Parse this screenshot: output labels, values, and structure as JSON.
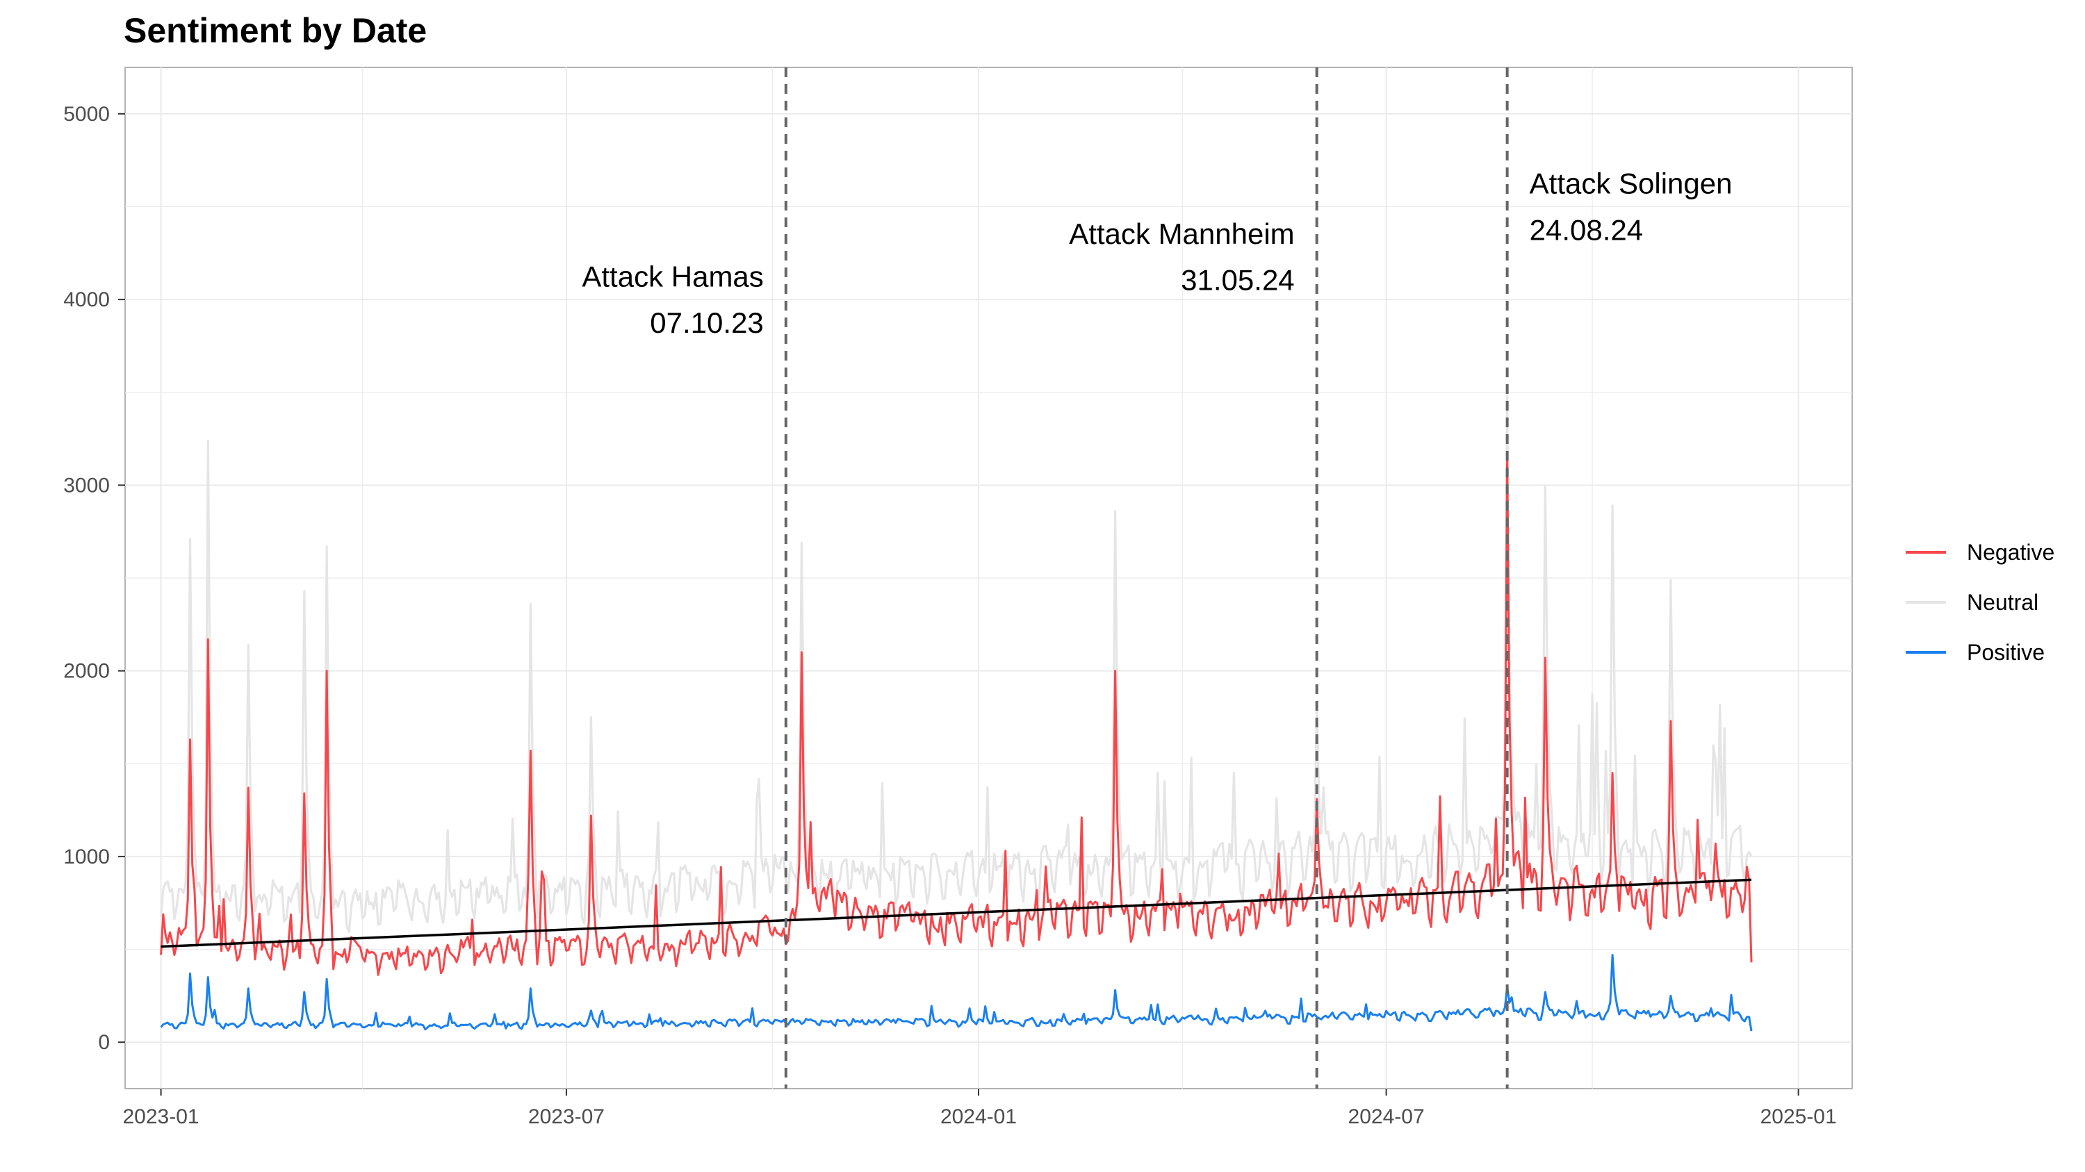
{
  "chart_data": {
    "type": "line",
    "title": "Sentiment by Date",
    "xlabel": "",
    "ylabel": "",
    "x_range": [
      "2022-12-16",
      "2025-01-25"
    ],
    "ylim": [
      -250,
      5250
    ],
    "y_ticks": [
      0,
      1000,
      2000,
      3000,
      4000,
      5000
    ],
    "x_ticks": [
      {
        "date": "2023-01-01",
        "label": "2023-01"
      },
      {
        "date": "2023-07-01",
        "label": "2023-07"
      },
      {
        "date": "2024-01-01",
        "label": "2024-01"
      },
      {
        "date": "2024-07-01",
        "label": "2024-07"
      },
      {
        "date": "2025-01-01",
        "label": "2025-01"
      }
    ],
    "grid": true,
    "legend_position": "right",
    "series": [
      {
        "name": "Neutral",
        "color": "#e5e5e5",
        "baseline": [
          {
            "date": "2023-01-01",
            "value": 800
          },
          {
            "date": "2023-04-01",
            "value": 740
          },
          {
            "date": "2023-06-01",
            "value": 790
          },
          {
            "date": "2023-08-01",
            "value": 820
          },
          {
            "date": "2023-10-07",
            "value": 900
          },
          {
            "date": "2023-12-01",
            "value": 890
          },
          {
            "date": "2024-02-01",
            "value": 930
          },
          {
            "date": "2024-04-01",
            "value": 920
          },
          {
            "date": "2024-05-31",
            "value": 1000
          },
          {
            "date": "2024-07-15",
            "value": 1000
          },
          {
            "date": "2024-08-24",
            "value": 1150
          },
          {
            "date": "2024-10-15",
            "value": 1000
          },
          {
            "date": "2024-12-10",
            "value": 1050
          }
        ],
        "spikes": [
          {
            "date": "2023-01-14",
            "value": 2710
          },
          {
            "date": "2023-01-22",
            "value": 3240
          },
          {
            "date": "2023-02-09",
            "value": 2140
          },
          {
            "date": "2023-03-06",
            "value": 2430
          },
          {
            "date": "2023-03-16",
            "value": 2670
          },
          {
            "date": "2023-06-15",
            "value": 2360
          },
          {
            "date": "2023-07-12",
            "value": 1750
          },
          {
            "date": "2023-10-14",
            "value": 2690
          },
          {
            "date": "2024-03-02",
            "value": 2860
          },
          {
            "date": "2024-05-31",
            "value": 1820
          },
          {
            "date": "2024-08-24",
            "value": 3480
          },
          {
            "date": "2024-09-10",
            "value": 2990
          },
          {
            "date": "2024-10-10",
            "value": 2890
          },
          {
            "date": "2024-11-05",
            "value": 2490
          },
          {
            "date": "2024-11-25",
            "value": 1520
          }
        ],
        "end_date": "2024-12-11",
        "end_value": 1000
      },
      {
        "name": "Negative",
        "color": "#f8464a",
        "baseline": [
          {
            "date": "2023-01-01",
            "value": 560
          },
          {
            "date": "2023-02-15",
            "value": 520
          },
          {
            "date": "2023-04-15",
            "value": 470
          },
          {
            "date": "2023-06-01",
            "value": 500
          },
          {
            "date": "2023-08-15",
            "value": 510
          },
          {
            "date": "2023-10-07",
            "value": 620
          },
          {
            "date": "2023-10-20",
            "value": 780
          },
          {
            "date": "2023-12-15",
            "value": 620
          },
          {
            "date": "2024-02-15",
            "value": 680
          },
          {
            "date": "2024-04-15",
            "value": 690
          },
          {
            "date": "2024-05-31",
            "value": 760
          },
          {
            "date": "2024-07-15",
            "value": 760
          },
          {
            "date": "2024-08-24",
            "value": 900
          },
          {
            "date": "2024-10-15",
            "value": 780
          },
          {
            "date": "2024-12-10",
            "value": 820
          }
        ],
        "spikes": [
          {
            "date": "2023-01-14",
            "value": 1630
          },
          {
            "date": "2023-01-22",
            "value": 2170
          },
          {
            "date": "2023-02-09",
            "value": 1370
          },
          {
            "date": "2023-03-06",
            "value": 1340
          },
          {
            "date": "2023-03-16",
            "value": 2000
          },
          {
            "date": "2023-06-15",
            "value": 1570
          },
          {
            "date": "2023-07-12",
            "value": 1220
          },
          {
            "date": "2023-10-14",
            "value": 2100
          },
          {
            "date": "2024-03-02",
            "value": 2000
          },
          {
            "date": "2024-05-31",
            "value": 1310
          },
          {
            "date": "2024-08-24",
            "value": 3160
          },
          {
            "date": "2024-09-10",
            "value": 2070
          },
          {
            "date": "2024-10-10",
            "value": 1450
          },
          {
            "date": "2024-11-05",
            "value": 1730
          },
          {
            "date": "2024-11-25",
            "value": 1070
          }
        ],
        "end_date": "2024-12-11",
        "end_value": 430
      },
      {
        "name": "Positive",
        "color": "#1a80f0",
        "baseline": [
          {
            "date": "2023-01-01",
            "value": 95
          },
          {
            "date": "2023-06-01",
            "value": 90
          },
          {
            "date": "2023-10-07",
            "value": 110
          },
          {
            "date": "2024-02-01",
            "value": 110
          },
          {
            "date": "2024-05-31",
            "value": 140
          },
          {
            "date": "2024-08-24",
            "value": 160
          },
          {
            "date": "2024-12-10",
            "value": 140
          }
        ],
        "spikes": [
          {
            "date": "2023-01-14",
            "value": 370
          },
          {
            "date": "2023-01-22",
            "value": 350
          },
          {
            "date": "2023-02-09",
            "value": 290
          },
          {
            "date": "2023-03-06",
            "value": 270
          },
          {
            "date": "2023-03-16",
            "value": 340
          },
          {
            "date": "2023-06-15",
            "value": 290
          },
          {
            "date": "2023-07-12",
            "value": 170
          },
          {
            "date": "2024-03-02",
            "value": 280
          },
          {
            "date": "2024-08-24",
            "value": 300
          },
          {
            "date": "2024-09-10",
            "value": 270
          },
          {
            "date": "2024-10-10",
            "value": 470
          },
          {
            "date": "2024-11-05",
            "value": 250
          }
        ],
        "end_date": "2024-12-11",
        "end_value": 60
      }
    ],
    "trend_line": {
      "color": "#000000",
      "start": {
        "date": "2023-01-01",
        "value": 515
      },
      "end": {
        "date": "2024-12-11",
        "value": 875
      }
    },
    "events": [
      {
        "date": "2023-10-07",
        "label": "Attack Hamas",
        "sub": "07.10.23",
        "align": "left",
        "label_value": 4070,
        "sub_value": 3820
      },
      {
        "date": "2024-05-31",
        "label": "Attack Mannheim",
        "sub": "31.05.24",
        "align": "left",
        "label_value": 4300,
        "sub_value": 4050
      },
      {
        "date": "2024-08-24",
        "label": "Attack Solingen",
        "sub": "24.08.24",
        "align": "right",
        "label_value": 4570,
        "sub_value": 4320
      }
    ],
    "legend": [
      {
        "name": "Negative",
        "color": "#f8464a"
      },
      {
        "name": "Neutral",
        "color": "#e5e5e5"
      },
      {
        "name": "Positive",
        "color": "#1a80f0"
      }
    ]
  }
}
